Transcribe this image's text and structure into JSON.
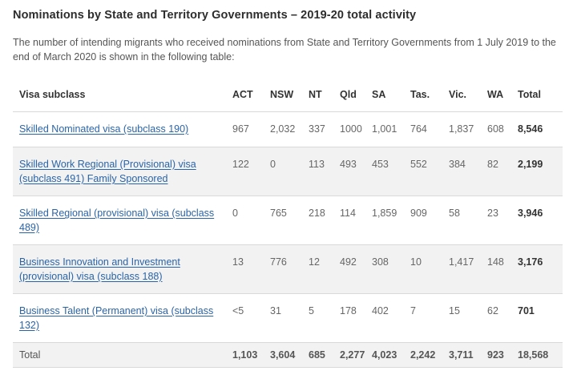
{
  "title": "Nominations by State and Territory Governments – 2019-20 total activity",
  "intro": "The number of intending migrants who received nominations from State and Territory Governments from 1 July 2019 to the end of March 2020 is shown in the following table:",
  "table": {
    "headers": {
      "visa": "Visa subclass",
      "act": "ACT",
      "nsw": "NSW",
      "nt": "NT",
      "qld": "Qld",
      "sa": "SA",
      "tas": "Tas.",
      "vic": "Vic.",
      "wa": "WA",
      "total": "Total"
    },
    "rows": [
      {
        "visa": "Skilled Nominated visa (subclass 190)",
        "act": "967",
        "nsw": "2,032",
        "nt": "337",
        "qld": "1000",
        "sa": "1,001",
        "tas": "764",
        "vic": "1,837",
        "wa": "608",
        "total": "8,546"
      },
      {
        "visa": "Skilled Work Regional (Provisional) visa (subclass 491) Family Sponsored",
        "act": "122",
        "nsw": "0",
        "nt": "113",
        "qld": "493",
        "sa": "453",
        "tas": "552",
        "vic": "384",
        "wa": "82",
        "total": "2,199"
      },
      {
        "visa": "Skilled Regional (provisional) visa (subclass 489)",
        "act": "0",
        "nsw": "765",
        "nt": "218",
        "qld": "114",
        "sa": "1,859",
        "tas": "909",
        "vic": "58",
        "wa": "23",
        "total": "3,946"
      },
      {
        "visa": "Business Innovation and Investment (provisional) visa (subclass 188)",
        "act": "13",
        "nsw": "776",
        "nt": "12",
        "qld": "492",
        "sa": "308",
        "tas": "10",
        "vic": "1,417",
        "wa": "148",
        "total": "3,176"
      },
      {
        "visa": "Business Talent (Permanent) visa (subclass 132)",
        "act": "<5",
        "nsw": "31",
        "nt": "5",
        "qld": "178",
        "sa": "402",
        "tas": "7",
        "vic": "15",
        "wa": "62",
        "total": "701"
      }
    ],
    "totals": {
      "label": "Total",
      "act": "1,103",
      "nsw": "3,604",
      "nt": "685",
      "qld": "2,277",
      "sa": "4,023",
      "tas": "2,242",
      "vic": "3,711",
      "wa": "923",
      "total": "18,568"
    }
  }
}
